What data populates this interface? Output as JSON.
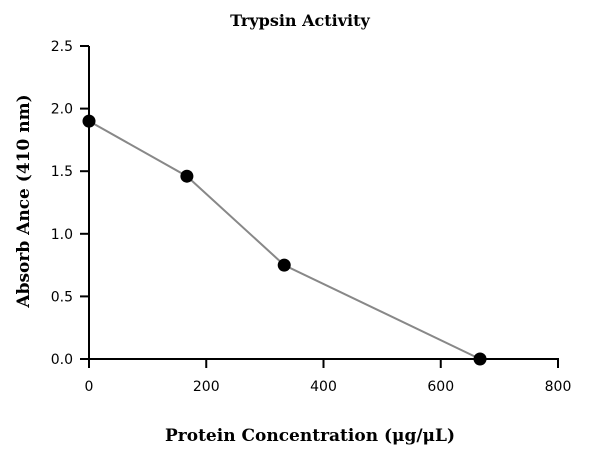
{
  "chart_data": {
    "type": "line",
    "title": "Trypsin Activity",
    "xlabel": "Protein Concentration (μg/μL)",
    "ylabel": "Absorb Ance (410 nm)",
    "x_ticks": [
      "0",
      "200",
      "400",
      "600",
      "800"
    ],
    "y_ticks": [
      "0.0",
      "0.5",
      "1.0",
      "1.5",
      "2.0",
      "2.5"
    ],
    "xlim": [
      0,
      800
    ],
    "ylim": [
      0,
      2.5
    ],
    "grid": false,
    "series": [
      {
        "x": [
          0,
          167,
          333,
          667
        ],
        "values": [
          1.9,
          1.46,
          0.75,
          0.0
        ]
      }
    ],
    "colors": {
      "line": "#888888",
      "marker": "#000000"
    }
  }
}
